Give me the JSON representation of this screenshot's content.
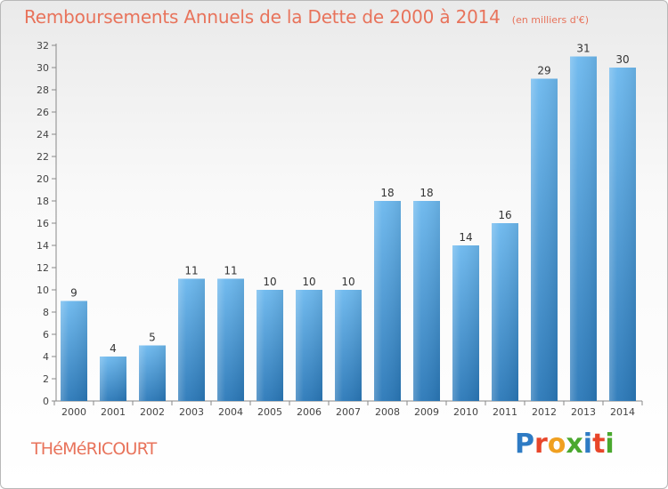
{
  "header": {
    "title": "Remboursements Annuels de la Dette de 2000 à 2014",
    "subtitle": "(en milliers d'€)"
  },
  "footer": {
    "commune": "THéMéRICOURT",
    "logo_letters": [
      "P",
      "r",
      "o",
      "x",
      "i",
      "t",
      "i"
    ],
    "logo_colors": [
      "#2e7bc4",
      "#e8462a",
      "#f0a020",
      "#4aa82e",
      "#2e7bc4",
      "#e8462a",
      "#4aa82e"
    ]
  },
  "colors": {
    "accent": "#e8735b",
    "bar_top": "#6cb8ee",
    "bar_bottom": "#2a78b8"
  },
  "chart_data": {
    "type": "bar",
    "title": "Remboursements Annuels de la Dette de 2000 à 2014",
    "categories": [
      "2000",
      "2001",
      "2002",
      "2003",
      "2004",
      "2005",
      "2006",
      "2007",
      "2008",
      "2009",
      "2010",
      "2011",
      "2012",
      "2013",
      "2014"
    ],
    "values": [
      9,
      4,
      5,
      11,
      11,
      10,
      10,
      10,
      18,
      18,
      14,
      16,
      29,
      31,
      30
    ],
    "ylim": [
      0,
      32
    ],
    "yticks": [
      0,
      2,
      4,
      6,
      8,
      10,
      12,
      14,
      16,
      18,
      20,
      22,
      24,
      26,
      28,
      30,
      32
    ],
    "xlabel": "",
    "ylabel": "",
    "grid": false,
    "data_labels": true
  }
}
